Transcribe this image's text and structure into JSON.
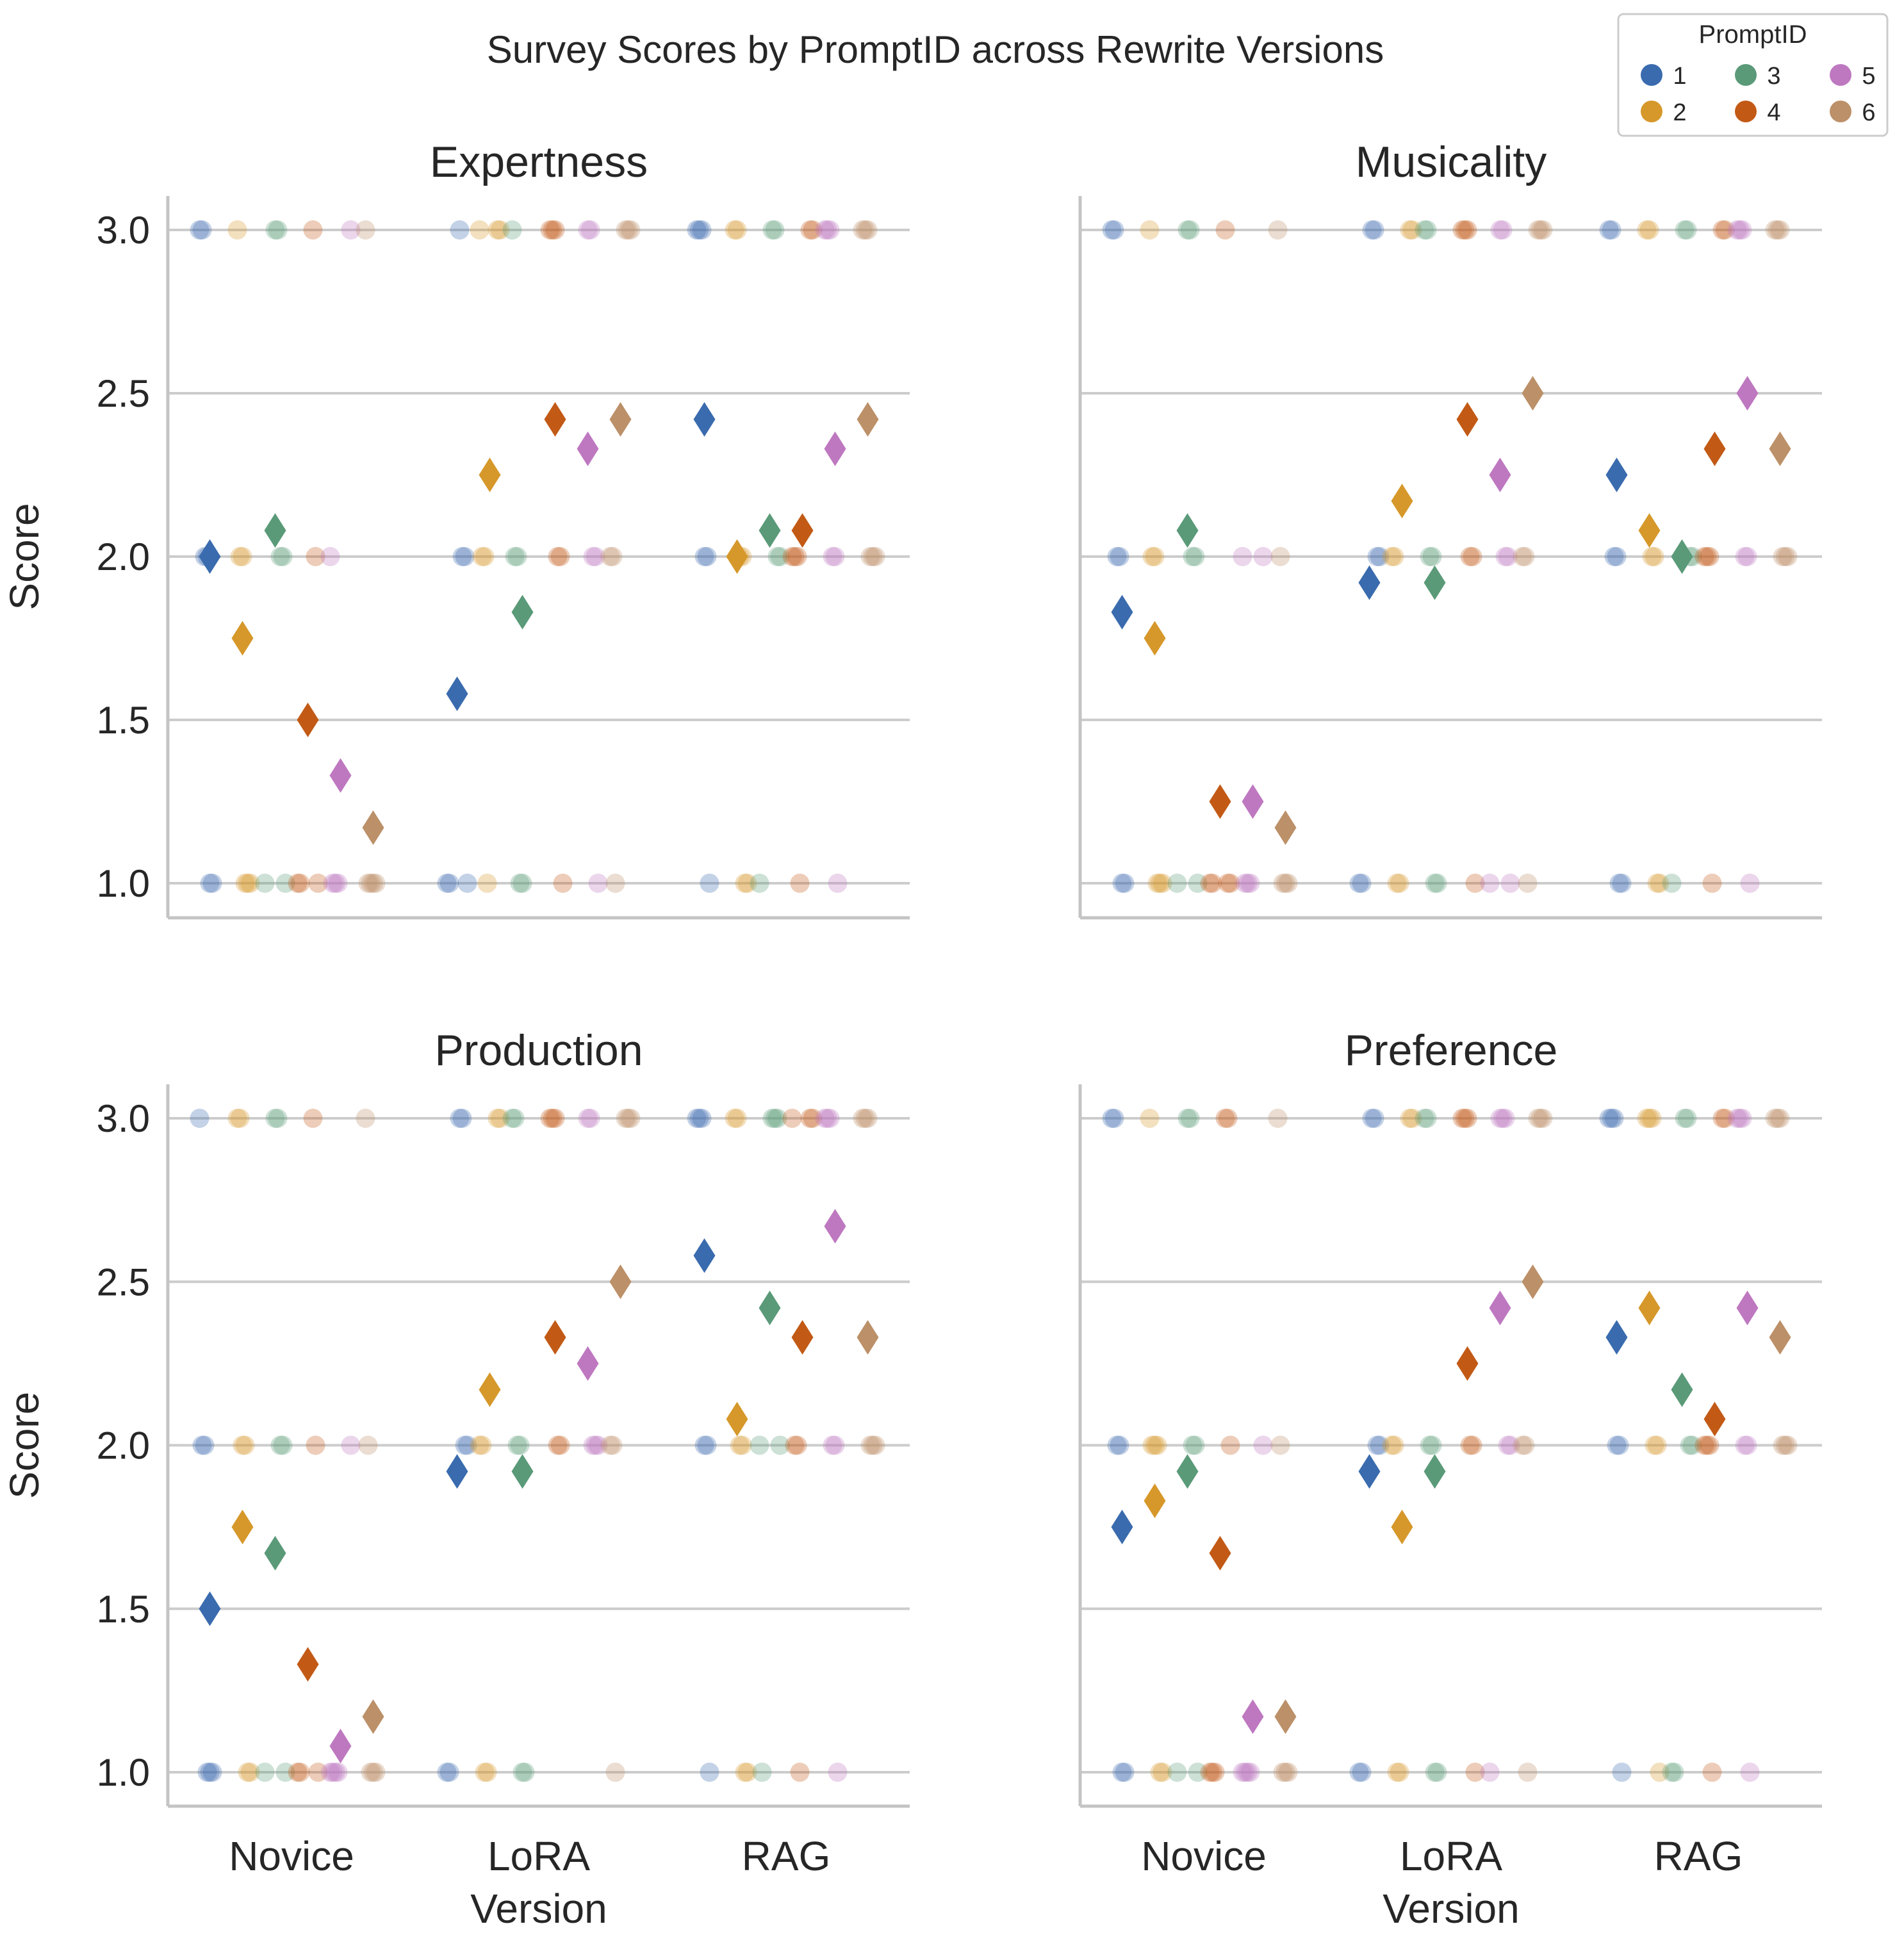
{
  "chart_data": {
    "type": "scatter",
    "title": "Survey Scores by PromptID across Rewrite Versions",
    "xlabel": "Version",
    "ylabel": "Score",
    "categories": [
      "Novice",
      "LoRA",
      "RAG"
    ],
    "ylim": [
      0.9,
      3.1
    ],
    "yticks": [
      "1.0",
      "1.5",
      "2.0",
      "2.5",
      "3.0"
    ],
    "grid": "horizontal",
    "legend": {
      "title": "PromptID",
      "placement": "top-right",
      "entries": [
        "1",
        "2",
        "3",
        "4",
        "5",
        "6"
      ]
    },
    "colors": {
      "1": "#3a6bae",
      "2": "#d6982a",
      "3": "#5a9a78",
      "4": "#c25a16",
      "5": "#be78c0",
      "6": "#bc9068"
    },
    "panels": [
      {
        "title": "Expertness",
        "means": {
          "1": [
            2.0,
            1.58,
            2.42
          ],
          "2": [
            1.75,
            2.25,
            2.0
          ],
          "3": [
            2.08,
            1.83,
            2.08
          ],
          "4": [
            1.5,
            2.42,
            2.08
          ],
          "5": [
            1.33,
            2.33,
            2.33
          ],
          "6": [
            1.17,
            2.42,
            2.42
          ]
        },
        "responses": {
          "1": [
            [
              3,
              3,
              2,
              2,
              1,
              1
            ],
            [
              3,
              2,
              2,
              1,
              1,
              1
            ],
            [
              3,
              3,
              3,
              2,
              2,
              1
            ]
          ],
          "2": [
            [
              3,
              2,
              2,
              1,
              1,
              1
            ],
            [
              3,
              3,
              3,
              2,
              2,
              1
            ],
            [
              3,
              3,
              2,
              2,
              1,
              1
            ]
          ],
          "3": [
            [
              3,
              3,
              2,
              2,
              1,
              1
            ],
            [
              3,
              2,
              2,
              1,
              1
            ],
            [
              3,
              3,
              2,
              2,
              1
            ]
          ],
          "4": [
            [
              3,
              2,
              1,
              1,
              1
            ],
            [
              3,
              3,
              3,
              2,
              2,
              1
            ],
            [
              3,
              3,
              2,
              2,
              2,
              1
            ]
          ],
          "5": [
            [
              3,
              2,
              1,
              1,
              1
            ],
            [
              3,
              3,
              2,
              2,
              1
            ],
            [
              3,
              3,
              3,
              2,
              2,
              1
            ]
          ],
          "6": [
            [
              3,
              1,
              1,
              1,
              1
            ],
            [
              3,
              3,
              3,
              2,
              2,
              1
            ],
            [
              3,
              3,
              3,
              2,
              2,
              2
            ]
          ]
        }
      },
      {
        "title": "Musicality",
        "means": {
          "1": [
            1.83,
            1.92,
            2.25
          ],
          "2": [
            1.75,
            2.17,
            2.08
          ],
          "3": [
            2.08,
            1.92,
            2.0
          ],
          "4": [
            1.25,
            2.42,
            2.33
          ],
          "5": [
            1.25,
            2.25,
            2.5
          ],
          "6": [
            1.17,
            2.5,
            2.33
          ]
        },
        "responses": {
          "1": [
            [
              3,
              3,
              2,
              2,
              1,
              1
            ],
            [
              3,
              3,
              2,
              2,
              1,
              1
            ],
            [
              3,
              3,
              2,
              2,
              1,
              1
            ]
          ],
          "2": [
            [
              3,
              2,
              2,
              1,
              1,
              1
            ],
            [
              3,
              3,
              2,
              2,
              1,
              1
            ],
            [
              3,
              3,
              2,
              2,
              1,
              1
            ]
          ],
          "3": [
            [
              3,
              3,
              2,
              2,
              1,
              1
            ],
            [
              3,
              3,
              2,
              2,
              1,
              1
            ],
            [
              3,
              3,
              2,
              2,
              1
            ]
          ],
          "4": [
            [
              3,
              1,
              1,
              1,
              1
            ],
            [
              3,
              3,
              3,
              2,
              2,
              1
            ],
            [
              3,
              3,
              2,
              2,
              2,
              1
            ]
          ],
          "5": [
            [
              2,
              2,
              1,
              1,
              1
            ],
            [
              3,
              3,
              2,
              2,
              1,
              1
            ],
            [
              3,
              3,
              3,
              2,
              2,
              1
            ]
          ],
          "6": [
            [
              3,
              2,
              1,
              1,
              1
            ],
            [
              3,
              3,
              3,
              2,
              2,
              1
            ],
            [
              3,
              3,
              3,
              2,
              2,
              2
            ]
          ]
        }
      },
      {
        "title": "Production",
        "means": {
          "1": [
            1.5,
            1.92,
            2.58
          ],
          "2": [
            1.75,
            2.17,
            2.08
          ],
          "3": [
            1.67,
            1.92,
            2.42
          ],
          "4": [
            1.33,
            2.33,
            2.33
          ],
          "5": [
            1.08,
            2.25,
            2.67
          ],
          "6": [
            1.17,
            2.5,
            2.33
          ]
        },
        "responses": {
          "1": [
            [
              3,
              2,
              2,
              1,
              1,
              1
            ],
            [
              3,
              3,
              2,
              2,
              1,
              1
            ],
            [
              3,
              3,
              3,
              2,
              2,
              1
            ]
          ],
          "2": [
            [
              3,
              3,
              2,
              2,
              1,
              1
            ],
            [
              3,
              3,
              2,
              2,
              1,
              1
            ],
            [
              3,
              3,
              2,
              2,
              1,
              1
            ]
          ],
          "3": [
            [
              3,
              3,
              2,
              2,
              1,
              1
            ],
            [
              3,
              3,
              2,
              2,
              1,
              1
            ],
            [
              3,
              3,
              3,
              2,
              2,
              1
            ]
          ],
          "4": [
            [
              3,
              2,
              1,
              1,
              1
            ],
            [
              3,
              3,
              3,
              2,
              2
            ],
            [
              3,
              3,
              3,
              2,
              2,
              1
            ]
          ],
          "5": [
            [
              2,
              1,
              1,
              1,
              1
            ],
            [
              3,
              3,
              2,
              2,
              2
            ],
            [
              3,
              3,
              3,
              2,
              2,
              1
            ]
          ],
          "6": [
            [
              3,
              2,
              1,
              1,
              1
            ],
            [
              3,
              3,
              3,
              2,
              2,
              1
            ],
            [
              3,
              3,
              3,
              2,
              2,
              2
            ]
          ]
        }
      },
      {
        "title": "Preference",
        "means": {
          "1": [
            1.75,
            1.92,
            2.33
          ],
          "2": [
            1.83,
            1.75,
            2.42
          ],
          "3": [
            1.92,
            1.92,
            2.17
          ],
          "4": [
            1.67,
            2.25,
            2.08
          ],
          "5": [
            1.17,
            2.42,
            2.42
          ],
          "6": [
            1.17,
            2.5,
            2.33
          ]
        },
        "responses": {
          "1": [
            [
              3,
              3,
              2,
              2,
              1,
              1
            ],
            [
              3,
              3,
              2,
              2,
              1,
              1
            ],
            [
              3,
              3,
              3,
              2,
              2,
              1
            ]
          ],
          "2": [
            [
              3,
              2,
              2,
              2,
              1,
              1
            ],
            [
              3,
              3,
              2,
              2,
              1,
              1
            ],
            [
              3,
              3,
              3,
              2,
              2,
              1
            ]
          ],
          "3": [
            [
              3,
              3,
              2,
              2,
              1,
              1
            ],
            [
              3,
              3,
              2,
              2,
              1,
              1
            ],
            [
              3,
              3,
              2,
              2,
              1,
              1
            ]
          ],
          "4": [
            [
              3,
              3,
              2,
              1,
              1,
              1
            ],
            [
              3,
              3,
              3,
              2,
              2,
              1
            ],
            [
              3,
              3,
              2,
              2,
              2,
              1
            ]
          ],
          "5": [
            [
              2,
              1,
              1,
              1,
              1
            ],
            [
              3,
              3,
              3,
              2,
              2,
              1
            ],
            [
              3,
              3,
              3,
              2,
              2,
              1
            ]
          ],
          "6": [
            [
              3,
              2,
              1,
              1,
              1
            ],
            [
              3,
              3,
              3,
              2,
              2,
              1
            ],
            [
              3,
              3,
              3,
              2,
              2,
              2
            ]
          ]
        }
      }
    ]
  }
}
